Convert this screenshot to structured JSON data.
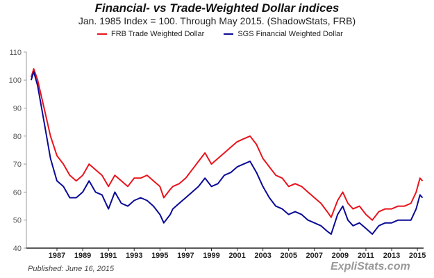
{
  "chart_data": {
    "type": "line",
    "title": "Financial- vs Trade-Weighted Dollar indices",
    "subtitle": "Jan. 1985 Index = 100.  Through May 2015.  (ShadowStats, FRB)",
    "xlabel": "",
    "ylabel": "",
    "ylim": [
      40,
      110
    ],
    "yticks": [
      "40",
      "50",
      "60",
      "70",
      "80",
      "90",
      "100",
      "110"
    ],
    "xticks": [
      "1987",
      "1989",
      "1991",
      "1993",
      "1995",
      "1997",
      "1999",
      "2001",
      "2003",
      "2005",
      "2007",
      "2009",
      "2011",
      "2013",
      "2015"
    ],
    "legend_position": "top",
    "x": [
      1985.0,
      1985.2,
      1985.5,
      1986.0,
      1986.5,
      1987.0,
      1987.5,
      1988.0,
      1988.5,
      1989.0,
      1989.5,
      1990.0,
      1990.5,
      1991.0,
      1991.5,
      1992.0,
      1992.5,
      1993.0,
      1993.5,
      1994.0,
      1994.5,
      1995.0,
      1995.3,
      1995.8,
      1996.0,
      1996.5,
      1997.0,
      1997.5,
      1998.0,
      1998.5,
      1999.0,
      1999.5,
      2000.0,
      2000.5,
      2001.0,
      2001.5,
      2002.0,
      2002.5,
      2003.0,
      2003.5,
      2004.0,
      2004.5,
      2005.0,
      2005.5,
      2006.0,
      2006.5,
      2007.0,
      2007.5,
      2008.0,
      2008.3,
      2008.8,
      2009.2,
      2009.6,
      2010.0,
      2010.5,
      2011.0,
      2011.5,
      2012.0,
      2012.5,
      2013.0,
      2013.5,
      2014.0,
      2014.5,
      2014.9,
      2015.2,
      2015.4
    ],
    "series": [
      {
        "name": "FRB Trade Weighted Dollar",
        "color": "#e8141c",
        "values": [
          101,
          104,
          100,
          90,
          80,
          73,
          70,
          66,
          64,
          66,
          70,
          68,
          66,
          62,
          66,
          64,
          62,
          65,
          65,
          66,
          64,
          62,
          58,
          61,
          62,
          63,
          65,
          68,
          71,
          74,
          70,
          72,
          74,
          76,
          78,
          79,
          80,
          77,
          72,
          69,
          66,
          65,
          62,
          63,
          62,
          60,
          58,
          56,
          53,
          51,
          57,
          60,
          56,
          54,
          55,
          52,
          50,
          53,
          54,
          54,
          55,
          55,
          56,
          60,
          65,
          64
        ]
      },
      {
        "name": "SGS Financial Weighted Dollar",
        "color": "#0a0a96",
        "values": [
          100,
          103,
          98,
          85,
          72,
          64,
          62,
          58,
          58,
          60,
          64,
          60,
          59,
          54,
          60,
          56,
          55,
          57,
          58,
          57,
          55,
          52,
          49,
          52,
          54,
          56,
          58,
          60,
          62,
          65,
          62,
          63,
          66,
          67,
          69,
          70,
          71,
          67,
          62,
          58,
          55,
          54,
          52,
          53,
          52,
          50,
          49,
          48,
          46,
          45,
          52,
          55,
          50,
          48,
          49,
          47,
          45,
          48,
          49,
          49,
          50,
          50,
          50,
          54,
          59,
          58
        ]
      }
    ]
  },
  "footer": {
    "published": "Published: June 16, 2015",
    "brand": "ExpliStats.com"
  }
}
